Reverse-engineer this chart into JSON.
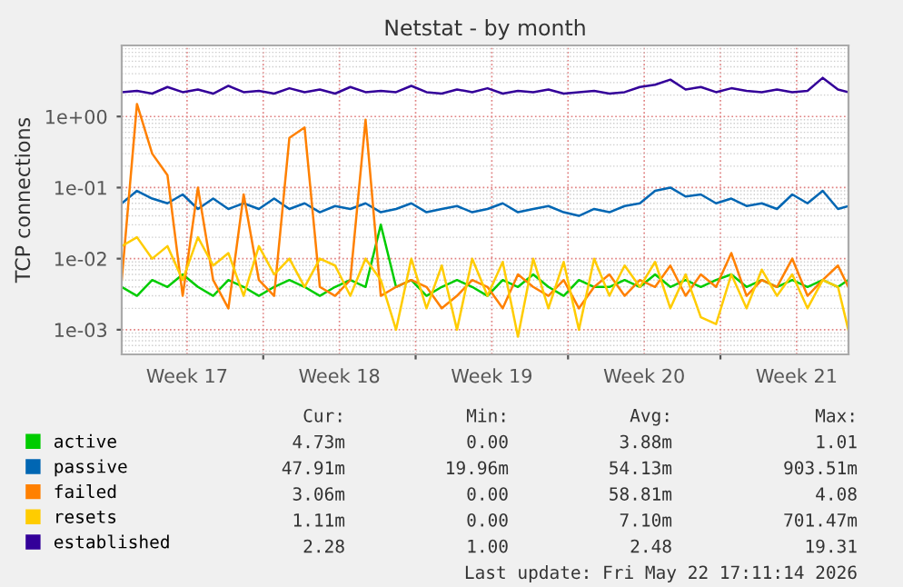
{
  "chart_data": {
    "type": "line",
    "title": "Netstat - by month",
    "ylabel": "TCP connections",
    "x": [
      "2026-04-19T08:00",
      "2026-04-20T00:48",
      "2026-04-20T17:36",
      "2026-04-21T10:24",
      "2026-04-22T03:12",
      "2026-04-22T20:00",
      "2026-04-23T12:48",
      "2026-04-24T05:36",
      "2026-04-24T22:24",
      "2026-04-25T15:12",
      "2026-04-26T08:00",
      "2026-04-27T00:48",
      "2026-04-27T17:36",
      "2026-04-28T10:24",
      "2026-04-29T03:12",
      "2026-04-29T20:00",
      "2026-04-30T12:48",
      "2026-05-01T05:36",
      "2026-05-01T22:24",
      "2026-05-02T15:12",
      "2026-05-03T08:00",
      "2026-05-04T00:48",
      "2026-05-04T17:36",
      "2026-05-05T10:24",
      "2026-05-06T03:12",
      "2026-05-06T20:00",
      "2026-05-07T12:48",
      "2026-05-08T05:36",
      "2026-05-08T22:24",
      "2026-05-09T15:12",
      "2026-05-10T08:00",
      "2026-05-11T00:48",
      "2026-05-11T17:36",
      "2026-05-12T10:24",
      "2026-05-13T03:12",
      "2026-05-13T20:00",
      "2026-05-14T12:48",
      "2026-05-15T05:36",
      "2026-05-15T22:24",
      "2026-05-16T15:12",
      "2026-05-17T08:00",
      "2026-05-18T00:48",
      "2026-05-18T17:36",
      "2026-05-19T10:24",
      "2026-05-20T03:12",
      "2026-05-20T20:00",
      "2026-05-21T12:48",
      "2026-05-22T05:36",
      "2026-05-22T17:00"
    ],
    "series": [
      {
        "name": "active",
        "color": "#00cc00",
        "values": [
          0.004,
          0.003,
          0.005,
          0.004,
          0.006,
          0.004,
          0.003,
          0.005,
          0.004,
          0.003,
          0.004,
          0.005,
          0.004,
          0.003,
          0.004,
          0.005,
          0.004,
          0.03,
          0.004,
          0.005,
          0.003,
          0.004,
          0.005,
          0.004,
          0.003,
          0.005,
          0.004,
          0.006,
          0.004,
          0.003,
          0.005,
          0.004,
          0.004,
          0.005,
          0.004,
          0.006,
          0.004,
          0.005,
          0.004,
          0.005,
          0.006,
          0.004,
          0.005,
          0.004,
          0.005,
          0.004,
          0.005,
          0.004,
          0.005
        ]
      },
      {
        "name": "passive",
        "color": "#0066b3",
        "values": [
          0.06,
          0.09,
          0.07,
          0.06,
          0.08,
          0.05,
          0.07,
          0.05,
          0.06,
          0.05,
          0.07,
          0.05,
          0.06,
          0.045,
          0.055,
          0.05,
          0.06,
          0.045,
          0.05,
          0.06,
          0.045,
          0.05,
          0.055,
          0.045,
          0.05,
          0.06,
          0.045,
          0.05,
          0.055,
          0.045,
          0.04,
          0.05,
          0.045,
          0.055,
          0.06,
          0.09,
          0.1,
          0.075,
          0.08,
          0.06,
          0.07,
          0.055,
          0.06,
          0.05,
          0.08,
          0.06,
          0.09,
          0.05,
          0.055
        ]
      },
      {
        "name": "failed",
        "color": "#ff8000",
        "values": [
          0.005,
          1.5,
          0.3,
          0.15,
          0.003,
          0.1,
          0.005,
          0.002,
          0.08,
          0.005,
          0.003,
          0.5,
          0.7,
          0.004,
          0.003,
          0.005,
          0.9,
          0.003,
          0.004,
          0.005,
          0.004,
          0.002,
          0.003,
          0.005,
          0.004,
          0.002,
          0.006,
          0.004,
          0.003,
          0.005,
          0.002,
          0.004,
          0.006,
          0.003,
          0.005,
          0.004,
          0.008,
          0.003,
          0.006,
          0.004,
          0.012,
          0.003,
          0.005,
          0.004,
          0.01,
          0.003,
          0.005,
          0.008,
          0.004
        ]
      },
      {
        "name": "resets",
        "color": "#ffcc00",
        "values": [
          0.015,
          0.02,
          0.01,
          0.015,
          0.005,
          0.02,
          0.008,
          0.012,
          0.003,
          0.015,
          0.006,
          0.01,
          0.004,
          0.01,
          0.008,
          0.003,
          0.01,
          0.005,
          0.001,
          0.01,
          0.002,
          0.008,
          0.001,
          0.01,
          0.003,
          0.009,
          0.0008,
          0.01,
          0.002,
          0.009,
          0.001,
          0.01,
          0.003,
          0.008,
          0.004,
          0.009,
          0.002,
          0.006,
          0.0015,
          0.0012,
          0.006,
          0.002,
          0.007,
          0.003,
          0.006,
          0.002,
          0.005,
          0.004,
          0.001
        ]
      },
      {
        "name": "established",
        "color": "#330099",
        "values": [
          2.2,
          2.3,
          2.1,
          2.6,
          2.2,
          2.4,
          2.1,
          2.7,
          2.2,
          2.3,
          2.1,
          2.5,
          2.2,
          2.4,
          2.1,
          2.6,
          2.2,
          2.3,
          2.2,
          2.7,
          2.2,
          2.1,
          2.4,
          2.2,
          2.5,
          2.1,
          2.3,
          2.2,
          2.4,
          2.1,
          2.2,
          2.3,
          2.1,
          2.2,
          2.6,
          2.8,
          3.3,
          2.4,
          2.6,
          2.2,
          2.5,
          2.3,
          2.2,
          2.4,
          2.2,
          2.3,
          3.5,
          2.4,
          2.2
        ]
      }
    ],
    "log": "y",
    "xlim": [
      "2026-04-19T08:00",
      "2026-05-22T17:11"
    ],
    "ylim": [
      0.00045,
      10
    ],
    "xticks": [
      {
        "value": "2026-04-22T08:00",
        "label": "Week 17"
      },
      {
        "value": "2026-04-25T20:00",
        "label": null
      },
      {
        "value": "2026-04-29T08:00",
        "label": "Week 18"
      },
      {
        "value": "2026-05-02T20:00",
        "label": null
      },
      {
        "value": "2026-05-06T08:00",
        "label": "Week 19"
      },
      {
        "value": "2026-05-09T20:00",
        "label": null
      },
      {
        "value": "2026-05-13T08:00",
        "label": "Week 20"
      },
      {
        "value": "2026-05-16T20:00",
        "label": null
      },
      {
        "value": "2026-05-20T08:00",
        "label": "Week 21"
      }
    ],
    "yticks": [
      {
        "value": 0.001,
        "label": "1e-03"
      },
      {
        "value": 0.01,
        "label": "1e-02"
      },
      {
        "value": 0.1,
        "label": "1e-01"
      },
      {
        "value": 1,
        "label": "1e+00"
      }
    ],
    "grid": true,
    "legend": "bottom",
    "annotations": [
      "Cur:",
      "Min:",
      "Avg:",
      "Max:",
      "4.73m",
      "0.00",
      "3.88m",
      "1.01",
      "47.91m",
      "19.96m",
      "54.13m",
      "903.51m",
      "3.06m",
      "0.00",
      "58.81m",
      "4.08",
      "1.11m",
      "0.00",
      "7.10m",
      "701.47m",
      "2.28",
      "1.00",
      "2.48",
      "19.31",
      "Last update: Fri May 22 17:11:14 2026"
    ]
  }
}
